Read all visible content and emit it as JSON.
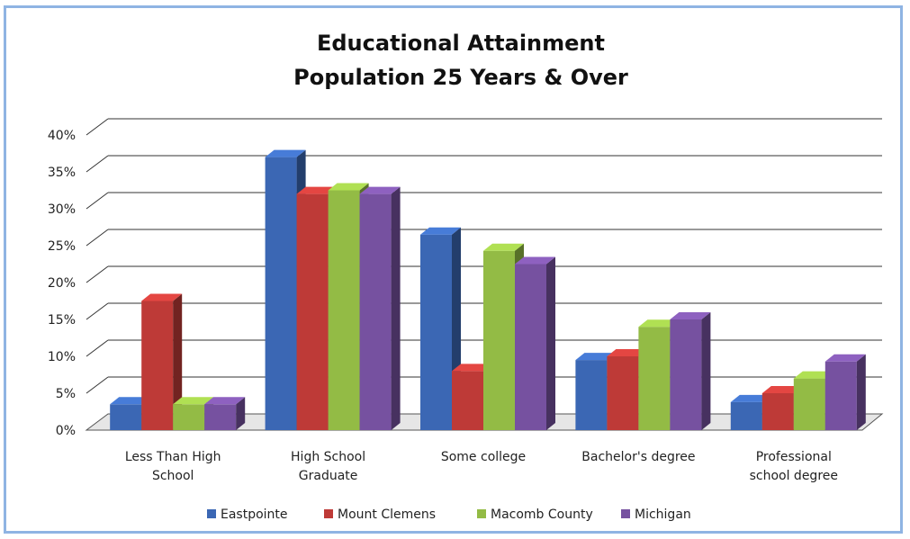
{
  "chart_data": {
    "type": "bar",
    "title": [
      "Educational Attainment",
      "Population 25 Years & Over"
    ],
    "xlabel": "",
    "ylabel": "",
    "ylim": [
      0,
      40
    ],
    "yticks": [
      "0%",
      "5%",
      "10%",
      "15%",
      "20%",
      "25%",
      "30%",
      "35%",
      "40%"
    ],
    "grid": true,
    "legend_position": "bottom",
    "categories": [
      [
        "Less Than High",
        "School"
      ],
      [
        "High School",
        "Graduate"
      ],
      [
        "Some college"
      ],
      [
        "Bachelor's degree"
      ],
      [
        "Professional",
        "school degree"
      ]
    ],
    "series": [
      {
        "name": "Eastpointe",
        "color": "#3b67b4",
        "values": [
          3.5,
          37,
          26.5,
          9.5,
          3.8
        ]
      },
      {
        "name": "Mount Clemens",
        "color": "#be3a37",
        "values": [
          17.5,
          32,
          8,
          10,
          5
        ]
      },
      {
        "name": "Macomb County",
        "color": "#93bb45",
        "values": [
          3.5,
          32.5,
          24.3,
          14,
          7
        ]
      },
      {
        "name": "Michigan",
        "color": "#7651a0",
        "values": [
          3.5,
          32,
          22.5,
          15,
          9.3
        ]
      }
    ]
  }
}
